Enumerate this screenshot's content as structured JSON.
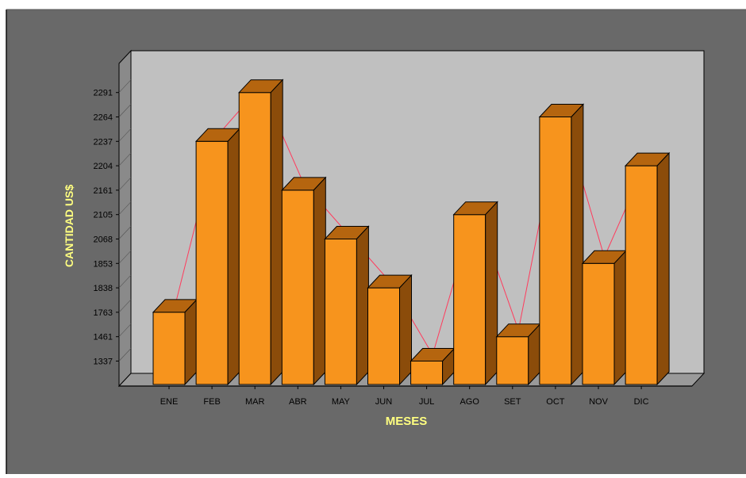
{
  "colors": {
    "frame_bg": "#696969",
    "plot_back": "#c0c0c0",
    "plot_floor": "#9a9a9a",
    "bar_front": "#f7941d",
    "bar_top": "#b5650f",
    "bar_side": "#8b4c0a",
    "trend_line": "#ff3b5c",
    "axis_label": "#ffff80",
    "tick_text": "#000000"
  },
  "chart_data": {
    "type": "bar",
    "title": "",
    "xlabel": "MESES",
    "ylabel": "CANTIDAD US$",
    "categories": [
      "ENE",
      "FEB",
      "MAR",
      "ABR",
      "MAY",
      "JUN",
      "JUL",
      "AGO",
      "SET",
      "OCT",
      "NOV",
      "DIC"
    ],
    "y_ticks": [
      "1337",
      "1461",
      "1763",
      "1838",
      "1853",
      "2068",
      "2105",
      "2161",
      "2204",
      "2237",
      "2264",
      "2291"
    ],
    "series": [
      {
        "values": [
          1763,
          2237,
          2291,
          2161,
          2068,
          1838,
          1337,
          2105,
          1461,
          2264,
          1853,
          2204
        ]
      }
    ],
    "axis_scale": "ordinal",
    "grid": false,
    "legend": "none",
    "style": "3d-bar with connecting line"
  }
}
